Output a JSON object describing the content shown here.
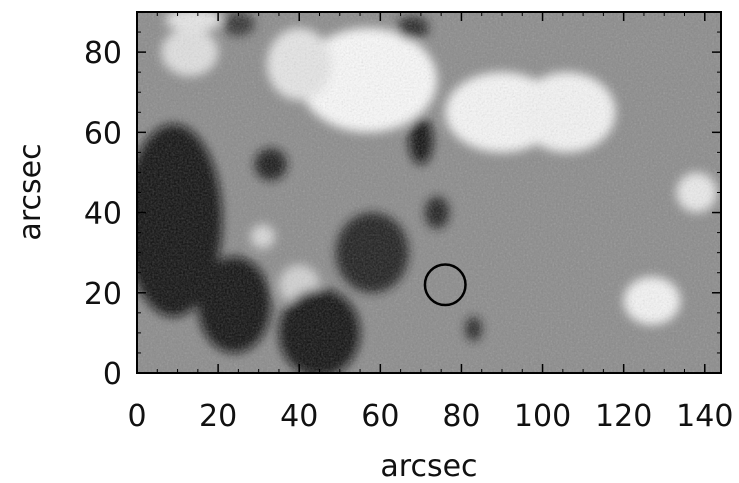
{
  "chart_data": {
    "type": "heatmap",
    "title": "",
    "xlabel": "arcsec",
    "ylabel": "arcsec",
    "xlim": [
      0,
      144
    ],
    "ylim": [
      0,
      90
    ],
    "x_ticks": [
      0,
      20,
      40,
      60,
      80,
      100,
      120,
      140
    ],
    "y_ticks": [
      0,
      20,
      40,
      60,
      80
    ],
    "x_tick_labels": [
      "0",
      "20",
      "40",
      "60",
      "80",
      "100",
      "120",
      "140"
    ],
    "y_tick_labels": [
      "0",
      "20",
      "40",
      "60",
      "80"
    ],
    "colormap": "grayscale",
    "background_color": "#8a8a8a",
    "features": [
      {
        "kind": "bright",
        "x": 57,
        "y": 73,
        "rx": 17,
        "ry": 13,
        "level": 0.98
      },
      {
        "kind": "bright",
        "x": 90,
        "y": 65,
        "rx": 14,
        "ry": 10,
        "level": 0.97
      },
      {
        "kind": "bright",
        "x": 106,
        "y": 65,
        "rx": 12,
        "ry": 10,
        "level": 0.96
      },
      {
        "kind": "bright",
        "x": 13,
        "y": 80,
        "rx": 7,
        "ry": 6,
        "level": 0.88
      },
      {
        "kind": "bright",
        "x": 40,
        "y": 77,
        "rx": 8,
        "ry": 9,
        "level": 0.9
      },
      {
        "kind": "bright",
        "x": 127,
        "y": 18,
        "rx": 7,
        "ry": 6,
        "level": 0.96
      },
      {
        "kind": "bright",
        "x": 138,
        "y": 45,
        "rx": 5,
        "ry": 5,
        "level": 0.92
      },
      {
        "kind": "bright",
        "x": 40,
        "y": 22,
        "rx": 5,
        "ry": 5,
        "level": 0.82
      },
      {
        "kind": "bright",
        "x": 31,
        "y": 34,
        "rx": 3,
        "ry": 3,
        "level": 0.85
      },
      {
        "kind": "bright",
        "x": 14,
        "y": 88,
        "rx": 7,
        "ry": 3,
        "level": 0.9
      },
      {
        "kind": "dark",
        "x": 9,
        "y": 38,
        "rx": 12,
        "ry": 24,
        "level": 0.04
      },
      {
        "kind": "dark",
        "x": 24,
        "y": 17,
        "rx": 9,
        "ry": 12,
        "level": 0.06
      },
      {
        "kind": "dark",
        "x": 45,
        "y": 10,
        "rx": 10,
        "ry": 11,
        "level": 0.05
      },
      {
        "kind": "dark",
        "x": 58,
        "y": 30,
        "rx": 9,
        "ry": 10,
        "level": 0.12
      },
      {
        "kind": "dark",
        "x": 70,
        "y": 58,
        "rx": 3,
        "ry": 6,
        "level": 0.05
      },
      {
        "kind": "dark",
        "x": 74,
        "y": 40,
        "rx": 3,
        "ry": 4,
        "level": 0.1
      },
      {
        "kind": "dark",
        "x": 33,
        "y": 52,
        "rx": 4,
        "ry": 4,
        "level": 0.08
      },
      {
        "kind": "dark",
        "x": 68,
        "y": 86,
        "rx": 4,
        "ry": 3,
        "level": 0.15
      },
      {
        "kind": "dark",
        "x": 83,
        "y": 11,
        "rx": 2,
        "ry": 3,
        "level": 0.1
      },
      {
        "kind": "dark",
        "x": 25,
        "y": 87,
        "rx": 4,
        "ry": 3,
        "level": 0.2
      }
    ],
    "annotations": [
      {
        "type": "circle",
        "x": 76,
        "y": 22,
        "radius": 5,
        "color": "#000000"
      }
    ]
  }
}
